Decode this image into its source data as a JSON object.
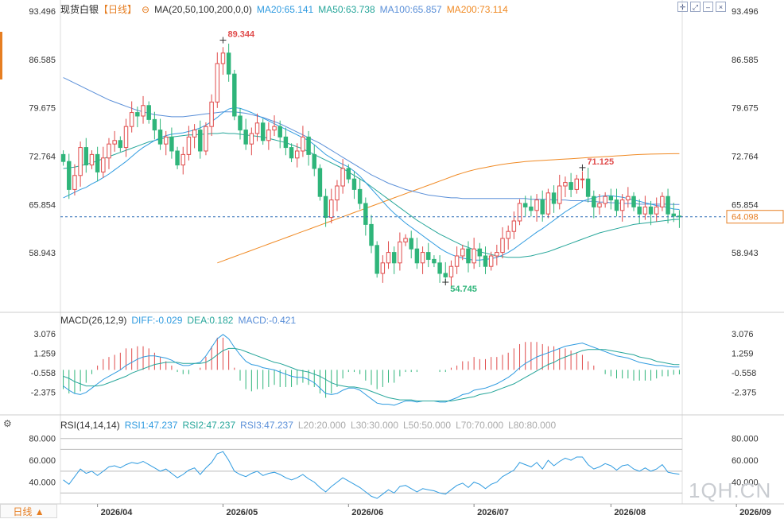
{
  "header": {
    "symbol": "现货白银",
    "period": "【日线】",
    "ma_label": "MA(20,50,100,200,0,0)",
    "ma_values": [
      {
        "text": "MA20:65.141",
        "color": "#2f9be0"
      },
      {
        "text": "MA50:63.738",
        "color": "#26a69a"
      },
      {
        "text": "MA100:65.857",
        "color": "#5a8fd8"
      },
      {
        "text": "MA200:73.114",
        "color": "#f08a24"
      }
    ]
  },
  "macd_header": {
    "label": "MACD(26,12,9)",
    "values": [
      {
        "text": "DIFF:-0.029",
        "color": "#2f9be0"
      },
      {
        "text": "DEA:0.182",
        "color": "#26a69a"
      },
      {
        "text": "MACD:-0.421",
        "color": "#5a8fd8"
      }
    ]
  },
  "rsi_header": {
    "label": "RSI(14,14,14)",
    "values": [
      {
        "text": "RSI1:47.237",
        "color": "#2f9be0"
      },
      {
        "text": "RSI2:47.237",
        "color": "#26a69a"
      },
      {
        "text": "RSI3:47.237",
        "color": "#5a8fd8"
      },
      {
        "text": "L20:20.000",
        "color": "#aaaaaa"
      },
      {
        "text": "L30:30.000",
        "color": "#aaaaaa"
      },
      {
        "text": "L50:50.000",
        "color": "#aaaaaa"
      },
      {
        "text": "L70:70.000",
        "color": "#aaaaaa"
      },
      {
        "text": "L80:80.000",
        "color": "#aaaaaa"
      }
    ]
  },
  "footer": {
    "period_button": "日线 ▲"
  },
  "watermark": "1QH.CN",
  "colors": {
    "up": "#e04b4b",
    "down": "#2fb57a",
    "ma20": "#2f9be0",
    "ma50": "#26a69a",
    "ma100": "#5a8fd8",
    "ma200": "#f08a24"
  },
  "chart_data": {
    "type": "candlestick",
    "price_axis": {
      "min": 51.0,
      "max": 93.496,
      "ticks": [
        "93.496",
        "86.585",
        "79.675",
        "72.764",
        "65.854",
        "58.943"
      ]
    },
    "current_price": "64.098",
    "high_label": "89.344",
    "low_label": "54.745",
    "local_high_label": "71.125",
    "x_tick_labels": [
      "2026/04",
      "2026/05",
      "2026/06",
      "2026/07",
      "2026/08",
      "2026/09"
    ],
    "x_tick_index": [
      6,
      28,
      50,
      72,
      96,
      118
    ],
    "closes": [
      72.0,
      68.0,
      70.0,
      74.0,
      71.5,
      73.0,
      70.5,
      72.5,
      74.5,
      75.0,
      74.0,
      77.0,
      79.0,
      78.5,
      80.0,
      78.0,
      76.5,
      74.5,
      75.5,
      73.5,
      71.5,
      73.0,
      75.5,
      76.5,
      73.5,
      77.0,
      80.5,
      86.0,
      87.5,
      84.5,
      78.5,
      76.5,
      74.5,
      76.0,
      77.5,
      75.0,
      76.5,
      77.0,
      75.5,
      74.0,
      72.5,
      73.5,
      75.5,
      73.0,
      71.0,
      67.0,
      64.0,
      66.5,
      68.5,
      71.0,
      69.5,
      68.0,
      66.0,
      63.0,
      60.0,
      56.0,
      57.5,
      59.0,
      57.5,
      60.5,
      61.0,
      59.5,
      57.5,
      59.0,
      58.0,
      57.5,
      56.0,
      55.5,
      57.0,
      58.5,
      59.5,
      57.5,
      59.5,
      58.5,
      57.0,
      58.5,
      59.0,
      61.0,
      62.0,
      63.5,
      66.0,
      65.5,
      65.0,
      66.5,
      64.5,
      67.5,
      66.0,
      68.5,
      69.0,
      68.0,
      69.5,
      69.5,
      67.0,
      65.5,
      66.0,
      67.0,
      66.5,
      65.0,
      66.5,
      67.0,
      65.5,
      64.5,
      65.5,
      64.5,
      65.5,
      67.0,
      64.5,
      64.2,
      64.098
    ],
    "ohlc_note": "OHLC derived from closes with estimated wicks",
    "ma20": [
      66.8,
      67.2,
      67.6,
      68.0,
      68.3,
      68.8,
      69.2,
      69.7,
      70.2,
      70.8,
      71.4,
      72.0,
      72.7,
      73.4,
      74.0,
      74.5,
      75.0,
      75.4,
      75.7,
      75.9,
      76.0,
      76.1,
      76.3,
      76.5,
      76.8,
      77.2,
      77.7,
      78.3,
      79.0,
      79.5,
      79.7,
      79.6,
      79.3,
      79.0,
      78.6,
      78.2,
      77.8,
      77.4,
      77.0,
      76.6,
      76.2,
      75.8,
      75.4,
      75.0,
      74.4,
      73.7,
      73.0,
      72.5,
      72.0,
      71.6,
      71.2,
      70.6,
      69.9,
      69.0,
      68.1,
      67.2,
      66.3,
      65.4,
      64.6,
      63.9,
      63.2,
      62.6,
      62.0,
      61.4,
      60.8,
      60.2,
      59.6,
      59.1,
      58.7,
      58.4,
      58.2,
      58.0,
      57.9,
      57.9,
      58.0,
      58.1,
      58.3,
      58.6,
      59.0,
      59.5,
      60.1,
      60.7,
      61.3,
      61.9,
      62.4,
      63.0,
      63.6,
      64.2,
      64.8,
      65.3,
      65.8,
      66.3,
      66.6,
      66.8,
      67.0,
      67.1,
      67.1,
      67.0,
      66.9,
      66.7,
      66.5,
      66.3,
      66.1,
      65.9,
      65.7,
      65.6,
      65.4,
      65.2,
      65.141
    ],
    "ma50": [
      71.0,
      71.1,
      71.2,
      71.4,
      71.6,
      71.8,
      72.1,
      72.4,
      72.7,
      73.0,
      73.3,
      73.6,
      73.9,
      74.2,
      74.5,
      74.8,
      75.0,
      75.2,
      75.4,
      75.5,
      75.6,
      75.7,
      75.8,
      75.8,
      75.9,
      75.9,
      76.0,
      76.0,
      76.1,
      76.0,
      76.0,
      75.9,
      75.8,
      75.7,
      75.6,
      75.5,
      75.3,
      75.1,
      74.9,
      74.7,
      74.4,
      74.1,
      73.8,
      73.4,
      73.0,
      72.6,
      72.2,
      71.8,
      71.4,
      71.0,
      70.5,
      70.0,
      69.5,
      69.0,
      68.4,
      67.8,
      67.2,
      66.6,
      66.0,
      65.4,
      64.8,
      64.2,
      63.6,
      63.1,
      62.6,
      62.1,
      61.6,
      61.2,
      60.8,
      60.4,
      60.0,
      59.7,
      59.4,
      59.1,
      58.9,
      58.7,
      58.5,
      58.4,
      58.3,
      58.3,
      58.3,
      58.4,
      58.5,
      58.7,
      58.9,
      59.1,
      59.4,
      59.7,
      60.0,
      60.3,
      60.6,
      60.9,
      61.2,
      61.5,
      61.8,
      62.0,
      62.2,
      62.4,
      62.6,
      62.8,
      63.0,
      63.1,
      63.2,
      63.3,
      63.4,
      63.5,
      63.6,
      63.7,
      63.738
    ],
    "ma100": [
      84.0,
      83.6,
      83.2,
      82.8,
      82.4,
      82.0,
      81.6,
      81.2,
      80.8,
      80.5,
      80.2,
      79.9,
      79.6,
      79.3,
      79.1,
      78.9,
      78.7,
      78.6,
      78.5,
      78.4,
      78.4,
      78.4,
      78.5,
      78.6,
      78.7,
      78.8,
      78.9,
      79.0,
      79.1,
      79.1,
      79.1,
      79.0,
      78.9,
      78.7,
      78.5,
      78.3,
      78.0,
      77.7,
      77.4,
      77.0,
      76.6,
      76.2,
      75.8,
      75.4,
      75.0,
      74.6,
      74.1,
      73.6,
      73.1,
      72.6,
      72.1,
      71.6,
      71.1,
      70.6,
      70.1,
      69.7,
      69.3,
      68.9,
      68.6,
      68.3,
      68.0,
      67.8,
      67.6,
      67.4,
      67.2,
      67.1,
      67.0,
      66.9,
      66.8,
      66.8,
      66.7,
      66.7,
      66.7,
      66.7,
      66.7,
      66.7,
      66.7,
      66.7,
      66.7,
      66.7,
      66.7,
      66.7,
      66.6,
      66.6,
      66.6,
      66.6,
      66.5,
      66.5,
      66.5,
      66.4,
      66.4,
      66.4,
      66.3,
      66.3,
      66.2,
      66.2,
      66.1,
      66.1,
      66.0,
      66.0,
      66.0,
      65.9,
      65.9,
      65.9,
      65.9,
      65.9,
      65.9,
      65.857,
      65.857
    ],
    "ma200": [
      57.5,
      57.8,
      58.1,
      58.4,
      58.7,
      59.0,
      59.3,
      59.6,
      59.9,
      60.2,
      60.5,
      60.8,
      61.1,
      61.4,
      61.7,
      62.0,
      62.3,
      62.6,
      62.9,
      63.2,
      63.5,
      63.8,
      64.1,
      64.4,
      64.7,
      65.0,
      65.3,
      65.6,
      65.9,
      66.2,
      66.5,
      66.8,
      67.1,
      67.4,
      67.7,
      68.0,
      68.3,
      68.6,
      68.9,
      69.2,
      69.5,
      69.8,
      70.1,
      70.35,
      70.6,
      70.8,
      71.0,
      71.15,
      71.3,
      71.45,
      71.6,
      71.7,
      71.8,
      71.9,
      72.0,
      72.05,
      72.1,
      72.15,
      72.2,
      72.25,
      72.3,
      72.35,
      72.4,
      72.45,
      72.5,
      72.55,
      72.6,
      72.65,
      72.7,
      72.75,
      72.8,
      72.85,
      72.9,
      72.95,
      73.0,
      73.03,
      73.05,
      73.07,
      73.09,
      73.1,
      73.11,
      73.114
    ],
    "macd_axis": {
      "min": -4.2,
      "max": 3.8,
      "ticks": [
        "3.076",
        "1.259",
        "-0.558",
        "-2.375"
      ]
    },
    "diff": [
      -1.8,
      -2.2,
      -2.5,
      -2.6,
      -2.4,
      -2.0,
      -1.6,
      -1.2,
      -0.9,
      -0.6,
      -0.3,
      0.1,
      0.4,
      0.7,
      0.9,
      1.0,
      1.0,
      0.9,
      0.8,
      0.6,
      0.3,
      0.1,
      0.1,
      0.3,
      0.4,
      1.0,
      1.8,
      2.6,
      3.0,
      2.6,
      1.8,
      1.1,
      0.5,
      0.2,
      0.1,
      -0.1,
      -0.2,
      -0.3,
      -0.5,
      -0.7,
      -0.9,
      -1.0,
      -1.0,
      -1.2,
      -1.5,
      -2.0,
      -2.5,
      -2.6,
      -2.5,
      -2.2,
      -2.0,
      -2.0,
      -2.2,
      -2.6,
      -3.0,
      -3.4,
      -3.5,
      -3.5,
      -3.6,
      -3.4,
      -3.2,
      -3.2,
      -3.3,
      -3.2,
      -3.2,
      -3.2,
      -3.3,
      -3.3,
      -3.1,
      -2.9,
      -2.6,
      -2.5,
      -2.2,
      -2.1,
      -2.0,
      -1.8,
      -1.6,
      -1.3,
      -1.0,
      -0.6,
      -0.1,
      0.3,
      0.6,
      0.9,
      1.1,
      1.3,
      1.5,
      1.7,
      1.9,
      2.0,
      2.1,
      2.2,
      2.0,
      1.8,
      1.6,
      1.4,
      1.2,
      1.0,
      0.9,
      0.8,
      0.6,
      0.4,
      0.3,
      0.2,
      0.1,
      0.1,
      0.0,
      -0.03,
      -0.029
    ],
    "dea": [
      -0.9,
      -1.1,
      -1.4,
      -1.6,
      -1.8,
      -1.8,
      -1.8,
      -1.7,
      -1.5,
      -1.3,
      -1.1,
      -0.9,
      -0.6,
      -0.4,
      -0.2,
      0.0,
      0.2,
      0.3,
      0.4,
      0.4,
      0.4,
      0.3,
      0.3,
      0.3,
      0.3,
      0.4,
      0.7,
      1.1,
      1.5,
      1.7,
      1.7,
      1.6,
      1.4,
      1.2,
      1.0,
      0.8,
      0.6,
      0.4,
      0.3,
      0.1,
      -0.1,
      -0.3,
      -0.4,
      -0.5,
      -0.7,
      -0.9,
      -1.2,
      -1.5,
      -1.7,
      -1.8,
      -1.9,
      -1.9,
      -2.0,
      -2.1,
      -2.3,
      -2.5,
      -2.7,
      -2.9,
      -3.0,
      -3.1,
      -3.1,
      -3.1,
      -3.2,
      -3.2,
      -3.2,
      -3.2,
      -3.2,
      -3.2,
      -3.2,
      -3.1,
      -3.0,
      -2.9,
      -2.8,
      -2.6,
      -2.5,
      -2.4,
      -2.2,
      -2.0,
      -1.8,
      -1.6,
      -1.3,
      -1.0,
      -0.7,
      -0.4,
      -0.1,
      0.2,
      0.4,
      0.7,
      0.9,
      1.1,
      1.3,
      1.5,
      1.6,
      1.6,
      1.6,
      1.6,
      1.5,
      1.4,
      1.3,
      1.2,
      1.1,
      0.9,
      0.8,
      0.7,
      0.5,
      0.4,
      0.3,
      0.2,
      0.182
    ],
    "macd_hist": [
      -1.8,
      -2.2,
      -2.2,
      -2.0,
      -1.2,
      -0.4,
      0.4,
      1.0,
      1.2,
      1.4,
      1.6,
      2.0,
      2.0,
      2.2,
      2.2,
      2.0,
      1.6,
      1.2,
      0.8,
      0.4,
      -0.2,
      -0.4,
      -0.4,
      0.0,
      0.2,
      1.2,
      2.2,
      3.0,
      3.0,
      1.8,
      0.2,
      -1.0,
      -1.8,
      -2.0,
      -1.8,
      -1.8,
      -1.6,
      -1.4,
      -1.6,
      -1.6,
      -1.6,
      -1.4,
      -1.2,
      -1.4,
      -1.6,
      -2.2,
      -2.6,
      -2.2,
      -1.6,
      -0.8,
      -0.2,
      -0.2,
      -0.4,
      -1.0,
      -1.4,
      -1.8,
      -1.6,
      -1.2,
      -1.2,
      -0.6,
      -0.2,
      -0.2,
      -0.2,
      0.0,
      0.0,
      0.0,
      -0.2,
      -0.2,
      0.2,
      0.4,
      0.8,
      0.8,
      1.2,
      1.0,
      1.0,
      1.2,
      1.2,
      1.4,
      1.6,
      2.0,
      2.4,
      2.6,
      2.6,
      2.6,
      2.4,
      2.2,
      2.2,
      2.0,
      2.0,
      1.8,
      1.6,
      1.4,
      0.8,
      0.4,
      0.0,
      -0.4,
      -0.6,
      -0.8,
      -0.8,
      -0.8,
      -1.0,
      -1.0,
      -1.0,
      -1.0,
      -0.8,
      -0.6,
      -0.6,
      -0.46,
      -0.421
    ],
    "rsi_axis": {
      "min": 20,
      "max": 90,
      "ticks": [
        "80.000",
        "60.000",
        "40.000"
      ]
    },
    "rsi": [
      42,
      38,
      45,
      52,
      48,
      50,
      46,
      50,
      54,
      55,
      53,
      56,
      58,
      57,
      59,
      56,
      53,
      50,
      52,
      48,
      44,
      47,
      51,
      53,
      47,
      53,
      58,
      66,
      68,
      60,
      50,
      47,
      45,
      48,
      50,
      46,
      48,
      49,
      47,
      44,
      42,
      44,
      47,
      43,
      40,
      35,
      31,
      36,
      40,
      44,
      41,
      38,
      35,
      31,
      27,
      25,
      29,
      33,
      30,
      36,
      37,
      34,
      31,
      34,
      33,
      32,
      30,
      29,
      33,
      37,
      39,
      35,
      40,
      38,
      34,
      38,
      40,
      45,
      48,
      51,
      58,
      56,
      54,
      58,
      52,
      60,
      55,
      59,
      62,
      60,
      63,
      63,
      56,
      52,
      54,
      57,
      55,
      51,
      55,
      56,
      52,
      50,
      53,
      50,
      52,
      56,
      49,
      48,
      47.237
    ]
  }
}
